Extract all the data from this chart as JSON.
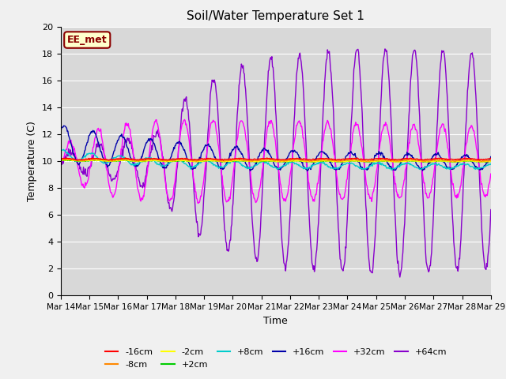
{
  "title": "Soil/Water Temperature Set 1",
  "xlabel": "Time",
  "ylabel": "Temperature (C)",
  "ylim": [
    0,
    20
  ],
  "xlim": [
    0,
    15
  ],
  "plot_bg_color": "#d8d8d8",
  "fig_bg_color": "#f0f0f0",
  "annotation_text": "EE_met",
  "annotation_bg": "#ffffcc",
  "annotation_border": "#8b0000",
  "series": [
    {
      "label": "-16cm",
      "color": "#ff0000"
    },
    {
      "label": "-8cm",
      "color": "#ff8800"
    },
    {
      "label": "-2cm",
      "color": "#ffff00"
    },
    {
      "label": "+2cm",
      "color": "#00cc00"
    },
    {
      "label": "+8cm",
      "color": "#00cccc"
    },
    {
      "label": "+16cm",
      "color": "#0000aa"
    },
    {
      "label": "+32cm",
      "color": "#ff00ff"
    },
    {
      "label": "+64cm",
      "color": "#8800cc"
    }
  ],
  "x_tick_labels": [
    "Mar 14",
    "Mar 15",
    "Mar 16",
    "Mar 17",
    "Mar 18",
    "Mar 19",
    "Mar 20",
    "Mar 21",
    "Mar 22",
    "Mar 23",
    "Mar 24",
    "Mar 25",
    "Mar 26",
    "Mar 27",
    "Mar 28",
    "Mar 29"
  ],
  "num_points": 720
}
